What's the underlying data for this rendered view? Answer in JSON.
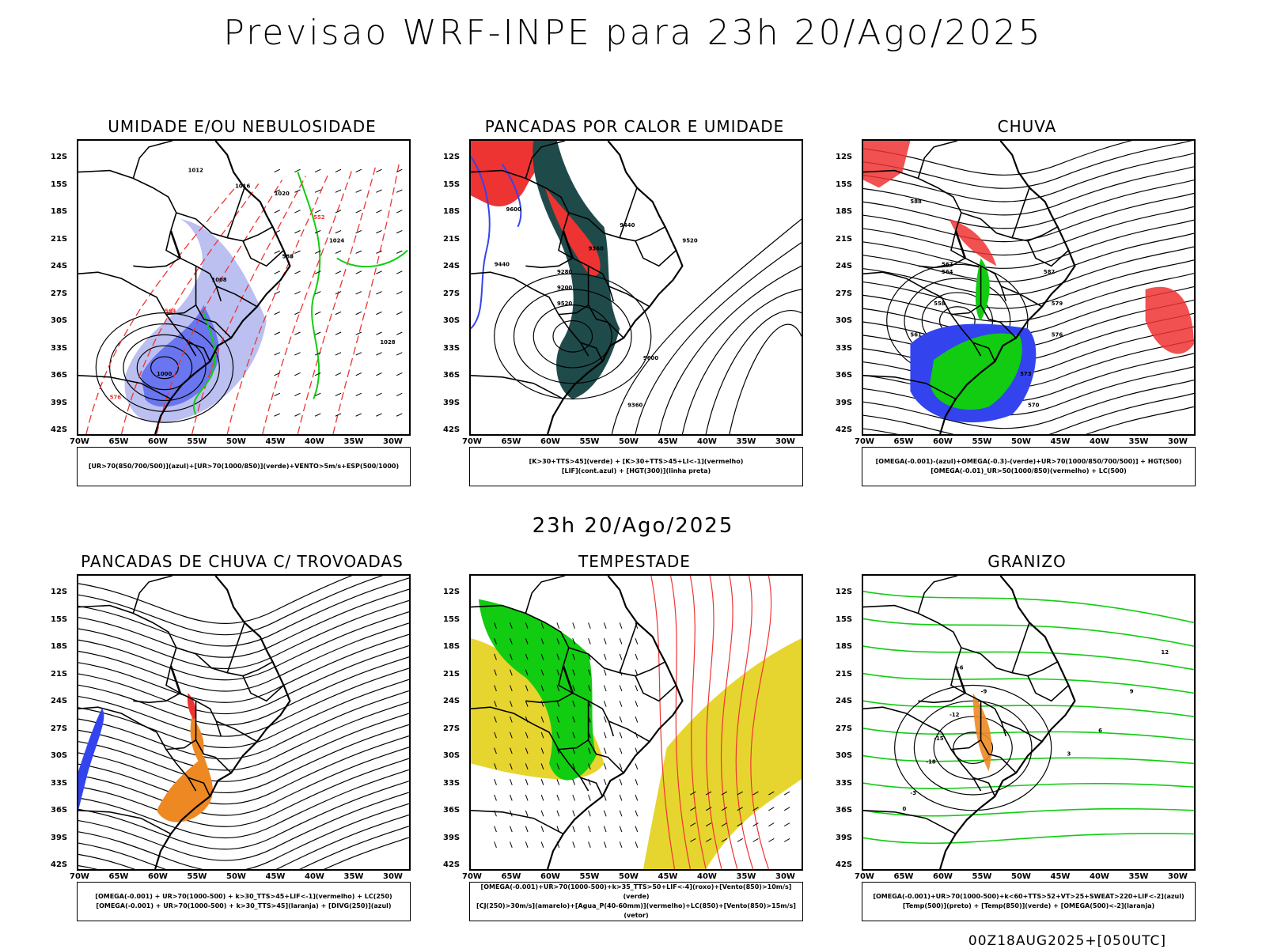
{
  "title": "Previsao WRF-INPE  para 23h 20/Ago/2025",
  "mid_title": "23h 20/Ago/2025",
  "footer": "00Z18AUG2025+[050UTC]",
  "axes": {
    "lat_labels": [
      "12S",
      "15S",
      "18S",
      "21S",
      "24S",
      "27S",
      "30S",
      "33S",
      "36S",
      "39S",
      "42S"
    ],
    "lon_labels": [
      "70W",
      "65W",
      "60W",
      "55W",
      "50W",
      "45W",
      "40W",
      "35W",
      "30W"
    ]
  },
  "colors": {
    "blue": "#3344ee",
    "green": "#11cc11",
    "red": "#ee3333",
    "orange": "#ee8822",
    "yellow": "#e6d52e",
    "dark_teal": "#1f4a4a",
    "light_purple": "#aab0ee"
  },
  "panels": [
    {
      "id": "umidade",
      "title": "UMIDADE E/OU NEBULOSIDADE",
      "legend": [
        "[UR>70(850/700/500)](azul)+[UR>70(1000/850)](verde)+VENTO>5m/s+ESP(500/1000)"
      ],
      "labels": [
        "1012",
        "1016",
        "1020",
        "1024",
        "1008",
        "1028",
        "576",
        "564",
        "552",
        "588",
        "1000"
      ]
    },
    {
      "id": "pancadas-calor",
      "title": "PANCADAS POR CALOR E UMIDADE",
      "legend": [
        "[K>30+TTS>45](verde) + [K>30+TTS>45+LI<-1](vermelho)",
        "[LIF](cont.azul) + [HGT(300)](linha preta)"
      ],
      "labels": [
        "9600",
        "9440",
        "9280",
        "9200",
        "9520",
        "9360",
        "9440",
        "9520",
        "9600",
        "9360"
      ]
    },
    {
      "id": "chuva",
      "title": "CHUVA",
      "legend": [
        "[OMEGA(-0.001)-(azul)+OMEGA(-0.3)-(verde)+UR>70(1000/850/700/500)] + HGT(500)",
        "[OMEGA(-0.01)_UR>50(1000/850)(vermelho) + LC(500)"
      ],
      "labels": [
        "588",
        "582",
        "579",
        "576",
        "573",
        "570",
        "567",
        "564",
        "558",
        "561"
      ]
    },
    {
      "id": "pancadas-trovoadas",
      "title": "PANCADAS DE CHUVA C/ TROVOADAS",
      "legend": [
        "[OMEGA(-0.001) + UR>70(1000-500) + k>30_TTS>45+LIF<-1](vermelho) + LC(250)",
        "[OMEGA(-0.001) + UR>70(1000-500) + k>30_TTS>45](laranja) + [DIVG(250)](azul)"
      ],
      "labels": []
    },
    {
      "id": "tempestade",
      "title": "TEMPESTADE",
      "legend": [
        "[OMEGA(-0.001)+UR>70(1000-500)+k>35_TTS>50+LIF<-4](roxo)+[Vento(850)>10m/s](verde)",
        "[CJ(250)>30m/s](amarelo)+[Agua_P(40-60mm)](vermelho)+LC(850)+[Vento(850)>15m/s](vetor)"
      ],
      "labels": []
    },
    {
      "id": "granizo",
      "title": "GRANIZO",
      "legend": [
        "[OMEGA(-0.001)+UR>70(1000-500)+k<60+TTS>52+VT>25+SWEAT>220+LIF<-2](azul)",
        "[Temp(500)](preto) + [Temp(850)](verde) + [OMEGA(500)<-2](laranja)"
      ],
      "labels": [
        "-6",
        "-9",
        "-12",
        "-15",
        "-18",
        "-3",
        "0",
        "3",
        "6",
        "9",
        "12"
      ]
    }
  ]
}
